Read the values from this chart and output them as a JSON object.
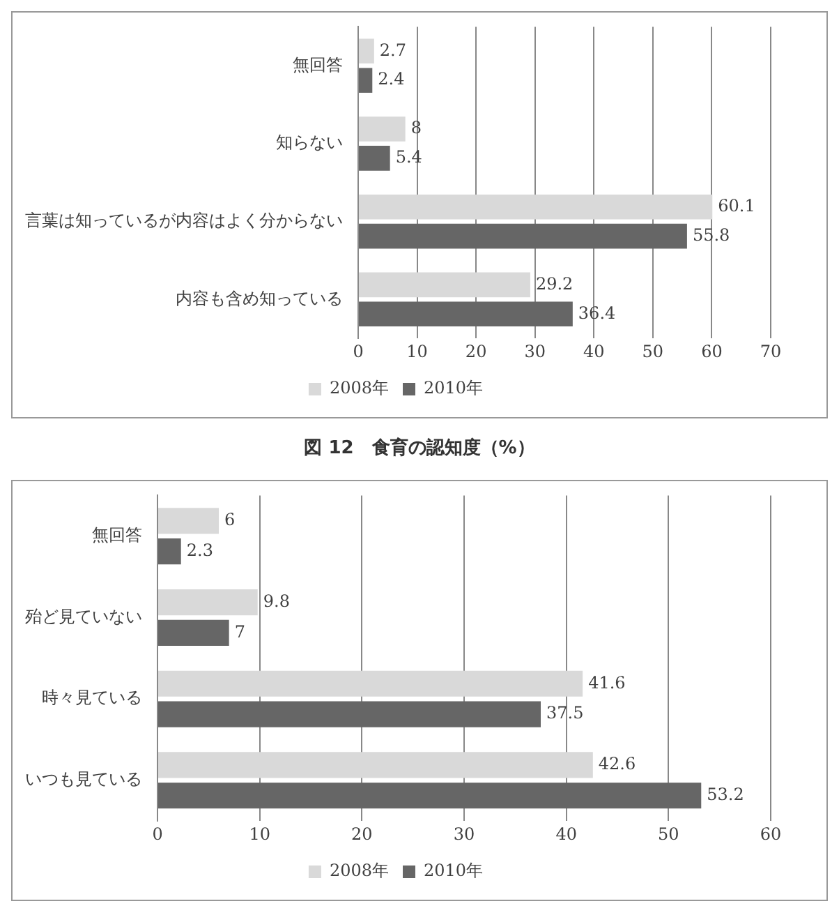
{
  "chart_data": [
    {
      "type": "bar",
      "orientation": "horizontal",
      "title": "図 12　食育の認知度（%）",
      "categories": [
        "無回答",
        "知らない",
        "言葉は知っているが内容はよく分からない",
        "内容も含め知っている"
      ],
      "series": [
        {
          "name": "2008年",
          "color": "#d9d9d9",
          "values": [
            2.7,
            8,
            60.1,
            29.2
          ]
        },
        {
          "name": "2010年",
          "color": "#666666",
          "values": [
            2.4,
            5.4,
            55.8,
            36.4
          ]
        }
      ],
      "xlim": [
        0,
        70
      ],
      "xticks": [
        0,
        10,
        20,
        30,
        40,
        50,
        60,
        70
      ],
      "grid": "x",
      "legend": "bottom",
      "data_labels": true
    },
    {
      "type": "bar",
      "orientation": "horizontal",
      "categories": [
        "無回答",
        "殆ど見ていない",
        "時々見ている",
        "いつも見ている"
      ],
      "series": [
        {
          "name": "2008年",
          "color": "#d9d9d9",
          "values": [
            6,
            9.8,
            41.6,
            42.6
          ]
        },
        {
          "name": "2010年",
          "color": "#666666",
          "values": [
            2.3,
            7,
            37.5,
            53.2
          ]
        }
      ],
      "xlim": [
        0,
        60
      ],
      "xticks": [
        0,
        10,
        20,
        30,
        40,
        50,
        60
      ],
      "grid": "x",
      "legend": "bottom",
      "data_labels": true
    }
  ]
}
